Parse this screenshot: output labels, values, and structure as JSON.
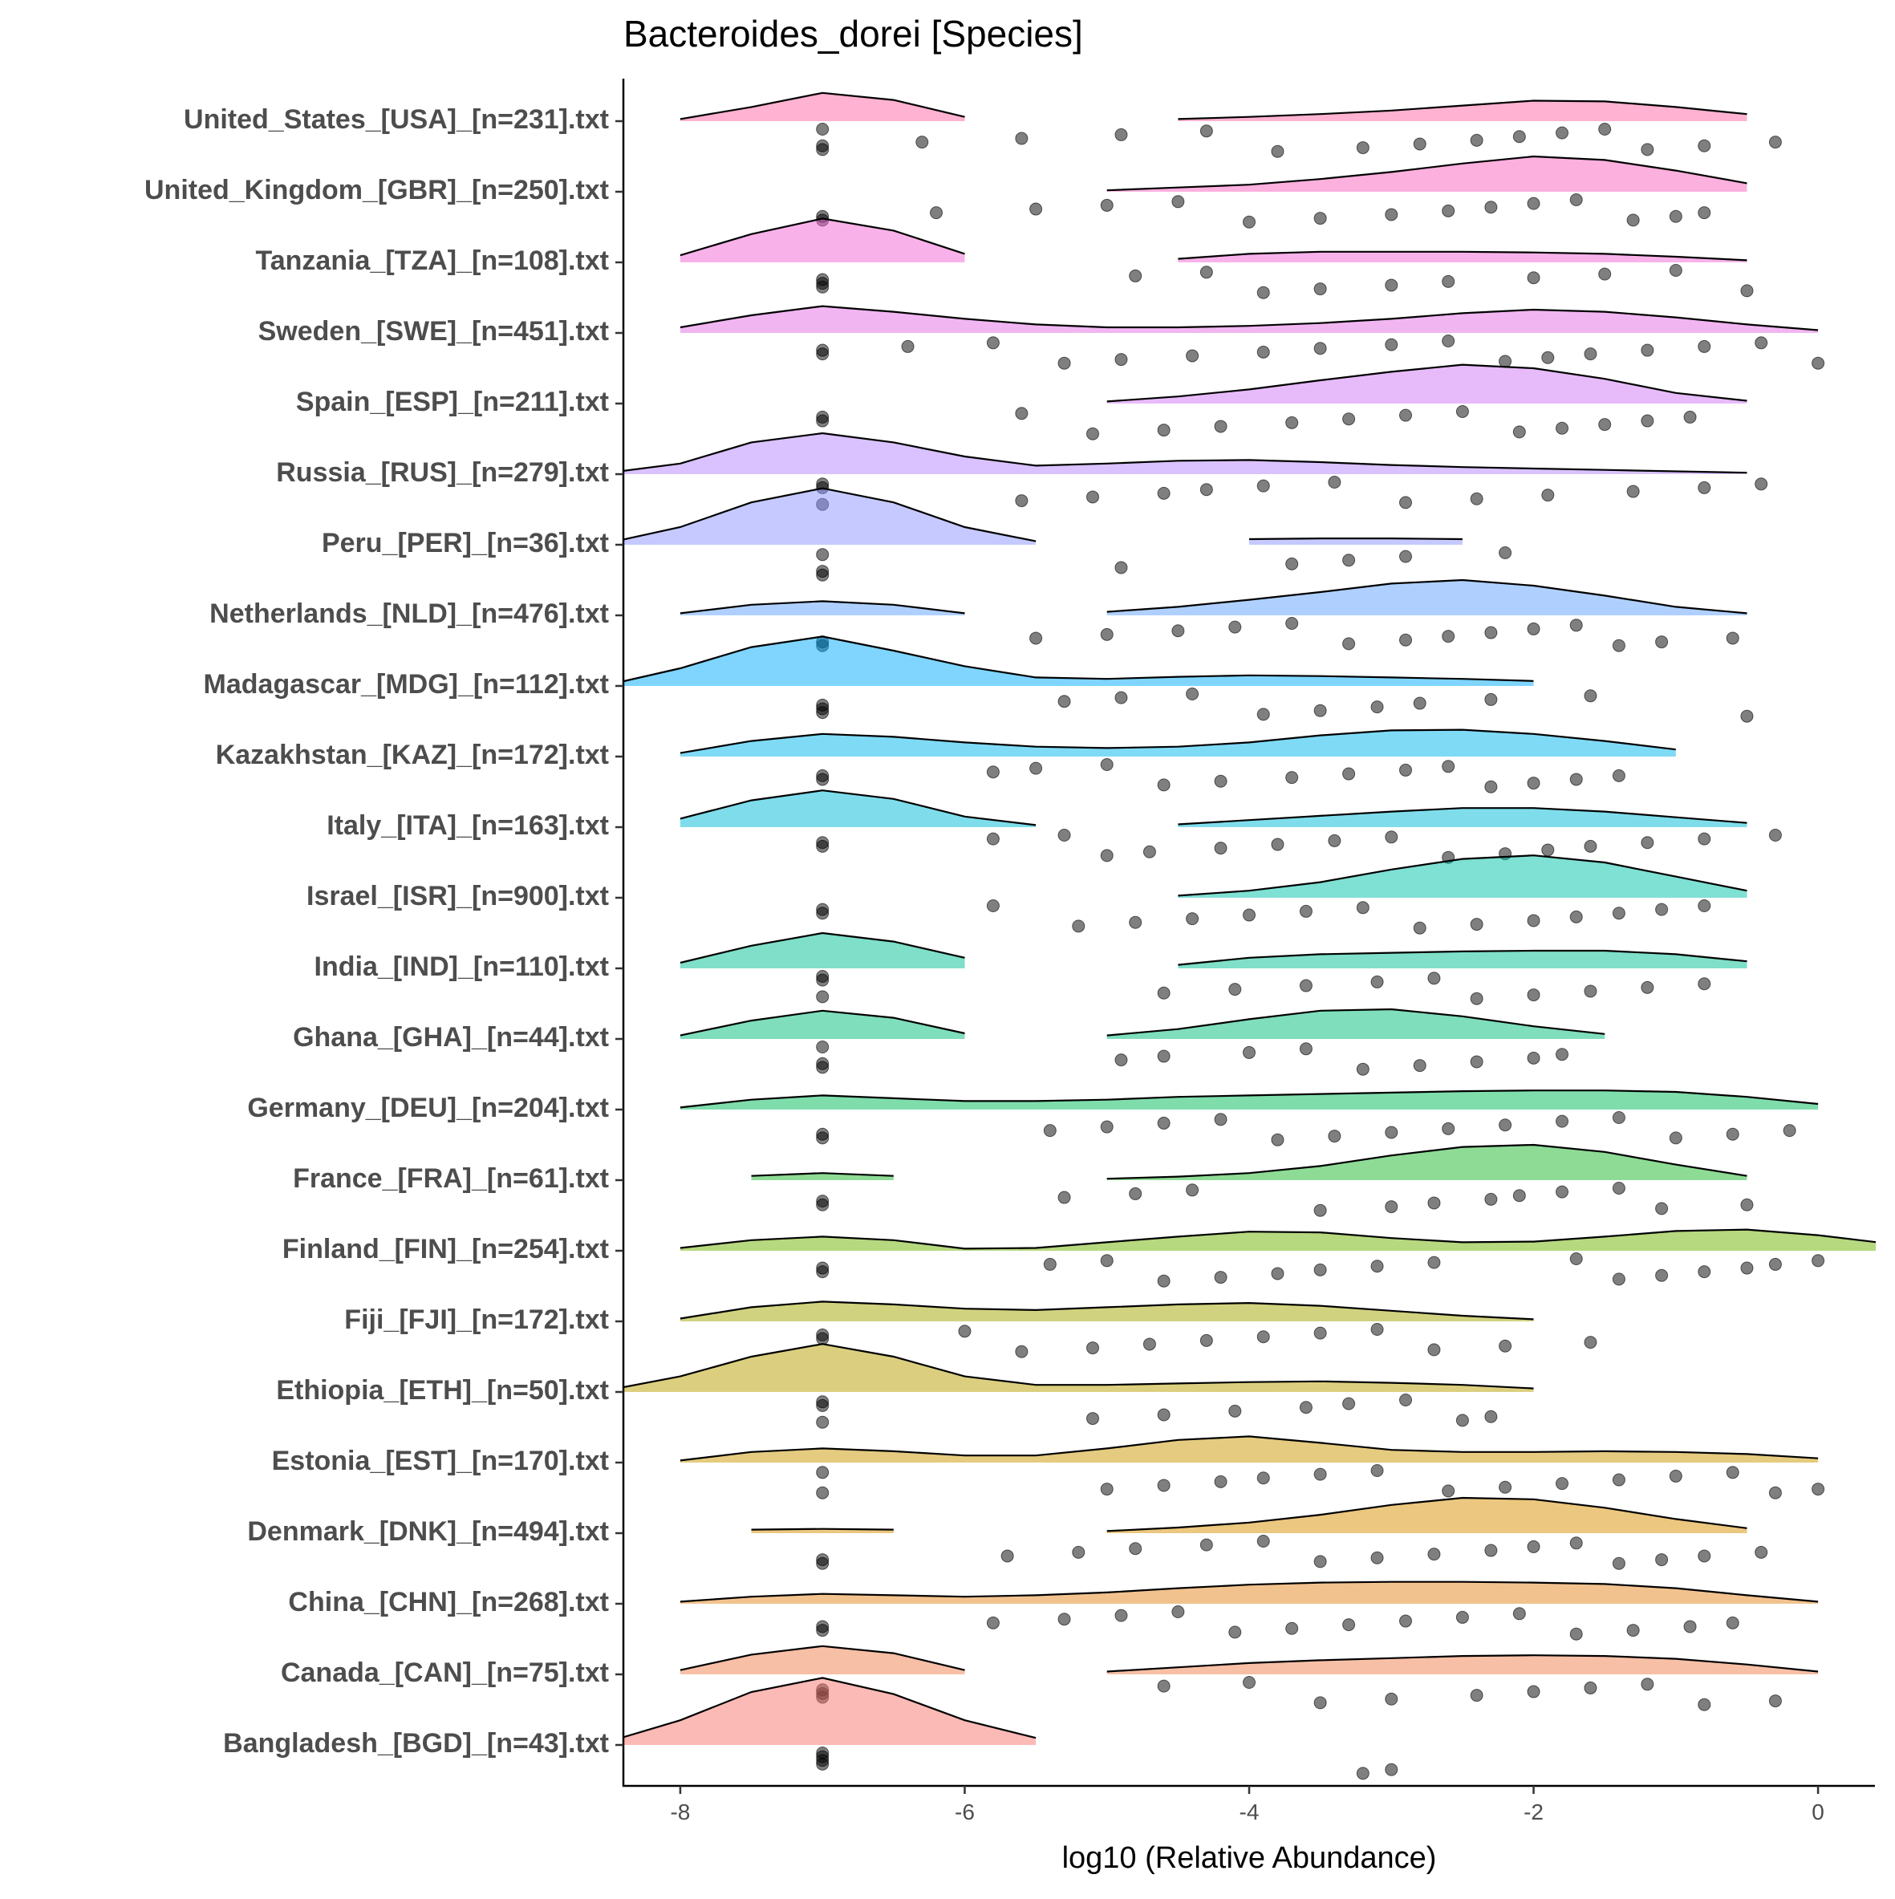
{
  "chart_data": {
    "type": "raincloud",
    "title": "Bacteroides_dorei [Species]",
    "x_label": "log10 (Relative Abundance)",
    "xlim": [
      -8.4,
      0.4
    ],
    "xticks": [
      -8,
      -6,
      -4,
      -2,
      0
    ],
    "categories": [
      "United_States_[USA]_[n=231].txt",
      "United_Kingdom_[GBR]_[n=250].txt",
      "Tanzania_[TZA]_[n=108].txt",
      "Sweden_[SWE]_[n=451].txt",
      "Spain_[ESP]_[n=211].txt",
      "Russia_[RUS]_[n=279].txt",
      "Peru_[PER]_[n=36].txt",
      "Netherlands_[NLD]_[n=476].txt",
      "Madagascar_[MDG]_[n=112].txt",
      "Kazakhstan_[KAZ]_[n=172].txt",
      "Italy_[ITA]_[n=163].txt",
      "Israel_[ISR]_[n=900].txt",
      "India_[IND]_[n=110].txt",
      "Ghana_[GHA]_[n=44].txt",
      "Germany_[DEU]_[n=204].txt",
      "France_[FRA]_[n=61].txt",
      "Finland_[FIN]_[n=254].txt",
      "Fiji_[FJI]_[n=172].txt",
      "Ethiopia_[ETH]_[n=50].txt",
      "Estonia_[EST]_[n=170].txt",
      "Denmark_[DNK]_[n=494].txt",
      "China_[CHN]_[n=268].txt",
      "Canada_[CAN]_[n=75].txt",
      "Bangladesh_[BGD]_[n=43].txt"
    ],
    "density_x": [
      -8.5,
      -8,
      -7.5,
      -7,
      -6.5,
      -6,
      -5.5,
      -5,
      -4.5,
      -4,
      -3.5,
      -3,
      -2.5,
      -2,
      -1.5,
      -1,
      -0.5,
      0,
      0.5
    ],
    "series": [
      {
        "color": "#FF66A4",
        "density": [
          null,
          0.03,
          0.2,
          0.4,
          0.3,
          0.06,
          null,
          null,
          0.03,
          0.06,
          0.1,
          0.15,
          0.22,
          0.29,
          0.28,
          0.2,
          0.1,
          null,
          null
        ],
        "points": [
          -7,
          -7,
          -7,
          -6.3,
          -5.6,
          -4.9,
          -4.3,
          -3.8,
          -3.2,
          -2.8,
          -2.4,
          -2.1,
          -1.8,
          -1.5,
          -1.2,
          -0.8,
          -0.3
        ]
      },
      {
        "color": "#FA62BD",
        "density": [
          null,
          null,
          null,
          null,
          null,
          null,
          null,
          0.02,
          0.06,
          0.1,
          0.18,
          0.28,
          0.4,
          0.5,
          0.45,
          0.3,
          0.12,
          null,
          null
        ],
        "points": [
          -7,
          -7,
          -6.2,
          -5.5,
          -5,
          -4.5,
          -4,
          -3.5,
          -3,
          -2.6,
          -2.3,
          -2,
          -1.7,
          -1.3,
          -1,
          -0.8
        ]
      },
      {
        "color": "#F265D3",
        "density": [
          null,
          0.1,
          0.4,
          0.62,
          0.45,
          0.12,
          null,
          null,
          0.05,
          0.12,
          0.15,
          0.15,
          0.15,
          0.14,
          0.12,
          0.08,
          0.03,
          null,
          null
        ],
        "points": [
          -7,
          -7,
          -7,
          -4.8,
          -4.3,
          -3.9,
          -3.5,
          -3,
          -2.6,
          -2,
          -1.5,
          -1,
          -0.5
        ]
      },
      {
        "color": "#E46DE6",
        "density": [
          null,
          0.08,
          0.25,
          0.38,
          0.3,
          0.2,
          0.12,
          0.08,
          0.08,
          0.1,
          0.14,
          0.2,
          0.28,
          0.33,
          0.3,
          0.22,
          0.12,
          0.04,
          null
        ],
        "points": [
          -7,
          -7,
          -6.4,
          -5.8,
          -5.3,
          -4.9,
          -4.4,
          -3.9,
          -3.5,
          -3,
          -2.6,
          -2.2,
          -1.9,
          -1.6,
          -1.2,
          -0.8,
          -0.4,
          0
        ]
      },
      {
        "color": "#D078F6",
        "density": [
          null,
          null,
          null,
          0.02,
          null,
          null,
          null,
          0.03,
          0.1,
          0.2,
          0.33,
          0.45,
          0.55,
          0.5,
          0.35,
          0.15,
          0.04,
          null,
          null
        ],
        "points": [
          -7,
          -7,
          -5.6,
          -5.1,
          -4.6,
          -4.2,
          -3.7,
          -3.3,
          -2.9,
          -2.5,
          -2.1,
          -1.8,
          -1.5,
          -1.2,
          -0.9
        ]
      },
      {
        "color": "#B385FF",
        "density": [
          0.02,
          0.15,
          0.45,
          0.58,
          0.45,
          0.25,
          0.12,
          0.15,
          0.19,
          0.2,
          0.17,
          0.13,
          0.1,
          0.08,
          0.06,
          0.04,
          0.02,
          null,
          null
        ],
        "points": [
          -7,
          -7,
          -7,
          -5.6,
          -5.1,
          -4.6,
          -4.3,
          -3.9,
          -3.4,
          -2.9,
          -2.4,
          -1.9,
          -1.3,
          -0.8,
          -0.4
        ]
      },
      {
        "color": "#8B93FF",
        "density": [
          0.03,
          0.25,
          0.6,
          0.8,
          0.6,
          0.25,
          0.05,
          null,
          null,
          0.08,
          0.09,
          0.09,
          0.08,
          null,
          null,
          null,
          null,
          null,
          null
        ],
        "points": [
          -7,
          -7,
          -7,
          -4.9,
          -3.7,
          -3.3,
          -2.9,
          -2.2
        ]
      },
      {
        "color": "#5FA2FF",
        "density": [
          null,
          0.03,
          0.15,
          0.2,
          0.15,
          0.03,
          null,
          0.05,
          0.12,
          0.22,
          0.33,
          0.45,
          0.5,
          0.42,
          0.28,
          0.12,
          0.03,
          null,
          null
        ],
        "points": [
          -7,
          -7,
          -5.5,
          -5,
          -4.5,
          -4.1,
          -3.7,
          -3.3,
          -2.9,
          -2.6,
          -2.3,
          -2,
          -1.7,
          -1.4,
          -1.1,
          -0.6
        ]
      },
      {
        "color": "#00ABFD",
        "density": [
          0.02,
          0.25,
          0.55,
          0.7,
          0.5,
          0.28,
          0.12,
          0.1,
          0.13,
          0.15,
          0.14,
          0.12,
          0.1,
          0.07,
          null,
          null,
          null,
          null,
          null
        ],
        "points": [
          -7,
          -7,
          -7,
          -5.3,
          -4.9,
          -4.4,
          -3.9,
          -3.5,
          -3.1,
          -2.8,
          -2.3,
          -1.6,
          -0.5
        ]
      },
      {
        "color": "#00B5EE",
        "density": [
          null,
          0.05,
          0.22,
          0.32,
          0.28,
          0.2,
          0.14,
          0.12,
          0.14,
          0.2,
          0.3,
          0.37,
          0.38,
          0.32,
          0.22,
          0.1,
          null,
          null,
          null
        ],
        "points": [
          -7,
          -7,
          -5.8,
          -5.5,
          -5,
          -4.6,
          -4.2,
          -3.7,
          -3.3,
          -2.9,
          -2.6,
          -2.3,
          -2,
          -1.7,
          -1.4
        ]
      },
      {
        "color": "#00BCD8",
        "density": [
          null,
          0.12,
          0.38,
          0.52,
          0.4,
          0.15,
          0.03,
          null,
          0.04,
          0.1,
          0.16,
          0.22,
          0.27,
          0.27,
          0.22,
          0.14,
          0.06,
          null,
          null
        ],
        "points": [
          -7,
          -7,
          -5.8,
          -5.3,
          -5,
          -4.7,
          -4.2,
          -3.8,
          -3.4,
          -3,
          -2.6,
          -2.2,
          -1.9,
          -1.6,
          -1.2,
          -0.8,
          -0.3
        ]
      },
      {
        "color": "#00C1AA",
        "density": [
          null,
          null,
          null,
          null,
          null,
          null,
          null,
          null,
          0.03,
          0.1,
          0.22,
          0.4,
          0.55,
          0.6,
          0.5,
          0.3,
          0.1,
          null,
          null
        ],
        "points": [
          -7,
          -7,
          -5.8,
          -5.2,
          -4.8,
          -4.4,
          -4,
          -3.6,
          -3.2,
          -2.8,
          -2.4,
          -2,
          -1.7,
          -1.4,
          -1.1,
          -0.8
        ]
      },
      {
        "color": "#00C094",
        "density": [
          null,
          0.08,
          0.32,
          0.5,
          0.38,
          0.15,
          null,
          null,
          0.05,
          0.15,
          0.2,
          0.22,
          0.24,
          0.25,
          0.25,
          0.2,
          0.1,
          null,
          null
        ],
        "points": [
          -7,
          -7,
          -7,
          -4.6,
          -4.1,
          -3.6,
          -3.1,
          -2.7,
          -2.4,
          -2,
          -1.6,
          -1.2,
          -0.8
        ]
      },
      {
        "color": "#00BE78",
        "density": [
          null,
          0.05,
          0.26,
          0.4,
          0.3,
          0.08,
          null,
          0.05,
          0.14,
          0.28,
          0.4,
          0.42,
          0.32,
          0.18,
          0.07,
          null,
          null,
          null,
          null
        ],
        "points": [
          -7,
          -7,
          -7,
          -4.9,
          -4.6,
          -4,
          -3.6,
          -3.2,
          -2.8,
          -2.4,
          -2,
          -1.8
        ]
      },
      {
        "color": "#00BC59",
        "density": [
          null,
          0.03,
          0.14,
          0.2,
          0.16,
          0.12,
          0.12,
          0.14,
          0.18,
          0.2,
          0.22,
          0.24,
          0.26,
          0.27,
          0.27,
          0.25,
          0.18,
          0.08,
          null
        ],
        "points": [
          -7,
          -7,
          -5.4,
          -5,
          -4.6,
          -4.2,
          -3.8,
          -3.4,
          -3,
          -2.6,
          -2.2,
          -1.8,
          -1.4,
          -1,
          -0.6,
          -0.2
        ]
      },
      {
        "color": "#1DB82E",
        "density": [
          null,
          null,
          0.06,
          0.1,
          0.06,
          null,
          null,
          0.02,
          0.05,
          0.1,
          0.2,
          0.35,
          0.47,
          0.5,
          0.4,
          0.22,
          0.06,
          null,
          null
        ],
        "points": [
          -7,
          -7,
          -5.3,
          -4.8,
          -4.4,
          -3.5,
          -3,
          -2.7,
          -2.3,
          -2.1,
          -1.8,
          -1.4,
          -1.1,
          -0.5
        ]
      },
      {
        "color": "#6EB100",
        "density": [
          null,
          0.04,
          0.15,
          0.2,
          0.15,
          0.03,
          0.04,
          0.12,
          0.2,
          0.27,
          0.26,
          0.18,
          0.12,
          0.13,
          0.2,
          0.28,
          0.3,
          0.22,
          0.1
        ],
        "points": [
          -7,
          -7,
          -5.4,
          -5,
          -4.6,
          -4.2,
          -3.8,
          -3.5,
          -3.1,
          -2.7,
          -1.7,
          -1.4,
          -1.1,
          -0.8,
          -0.5,
          -0.3,
          0
        ]
      },
      {
        "color": "#A3A500",
        "density": [
          null,
          0.04,
          0.2,
          0.28,
          0.24,
          0.18,
          0.16,
          0.2,
          0.24,
          0.26,
          0.22,
          0.15,
          0.08,
          0.03,
          null,
          null,
          null,
          null,
          null
        ],
        "points": [
          -7,
          -7,
          -6,
          -5.6,
          -5.1,
          -4.7,
          -4.3,
          -3.9,
          -3.5,
          -3.1,
          -2.7,
          -2.2,
          -1.6
        ]
      },
      {
        "color": "#B79F00",
        "density": [
          0.03,
          0.22,
          0.5,
          0.68,
          0.5,
          0.22,
          0.1,
          0.1,
          0.12,
          0.14,
          0.15,
          0.13,
          0.1,
          0.05,
          null,
          null,
          null,
          null,
          null
        ],
        "points": [
          -7,
          -7,
          -7,
          -5.1,
          -4.6,
          -4.1,
          -3.6,
          -3.3,
          -2.9,
          -2.5,
          -2.3
        ]
      },
      {
        "color": "#C99800",
        "density": [
          null,
          0.03,
          0.15,
          0.2,
          0.16,
          0.1,
          0.1,
          0.2,
          0.32,
          0.37,
          0.28,
          0.18,
          0.15,
          0.15,
          0.16,
          0.15,
          0.12,
          0.06,
          null
        ],
        "points": [
          -7,
          -7,
          -5,
          -4.6,
          -4.2,
          -3.9,
          -3.5,
          -3.1,
          -2.6,
          -2.2,
          -1.8,
          -1.4,
          -1,
          -0.6,
          -0.3,
          0
        ]
      },
      {
        "color": "#D89000",
        "density": [
          null,
          null,
          0.05,
          0.06,
          0.05,
          null,
          null,
          0.03,
          0.08,
          0.15,
          0.26,
          0.4,
          0.5,
          0.48,
          0.36,
          0.2,
          0.07,
          null,
          null
        ],
        "points": [
          -7,
          -7,
          -5.7,
          -5.2,
          -4.8,
          -4.3,
          -3.9,
          -3.5,
          -3.1,
          -2.7,
          -2.3,
          -2,
          -1.7,
          -1.4,
          -1.1,
          -0.8,
          -0.4
        ]
      },
      {
        "color": "#E5861D",
        "density": [
          null,
          0.03,
          0.1,
          0.14,
          0.12,
          0.1,
          0.12,
          0.16,
          0.22,
          0.27,
          0.3,
          0.31,
          0.31,
          0.3,
          0.28,
          0.22,
          0.12,
          0.03,
          null
        ],
        "points": [
          -7,
          -7,
          -5.8,
          -5.3,
          -4.9,
          -4.5,
          -4.1,
          -3.7,
          -3.3,
          -2.9,
          -2.5,
          -2.1,
          -1.7,
          -1.3,
          -0.9,
          -0.6
        ]
      },
      {
        "color": "#F07F4E",
        "density": [
          null,
          0.06,
          0.28,
          0.4,
          0.3,
          0.06,
          null,
          0.04,
          0.1,
          0.16,
          0.2,
          0.23,
          0.26,
          0.27,
          0.26,
          0.22,
          0.14,
          0.04,
          null
        ],
        "points": [
          -7,
          -7,
          -7,
          -4.6,
          -4,
          -3.5,
          -3,
          -2.4,
          -2,
          -1.6,
          -1.2,
          -0.8,
          -0.3
        ]
      },
      {
        "color": "#F8766D",
        "density": [
          0.05,
          0.35,
          0.75,
          0.95,
          0.72,
          0.35,
          0.1,
          null,
          null,
          null,
          null,
          null,
          null,
          null,
          null,
          null,
          null,
          null,
          null
        ],
        "points": [
          -7,
          -7,
          -7,
          -7,
          -3.2,
          -3
        ]
      }
    ]
  }
}
